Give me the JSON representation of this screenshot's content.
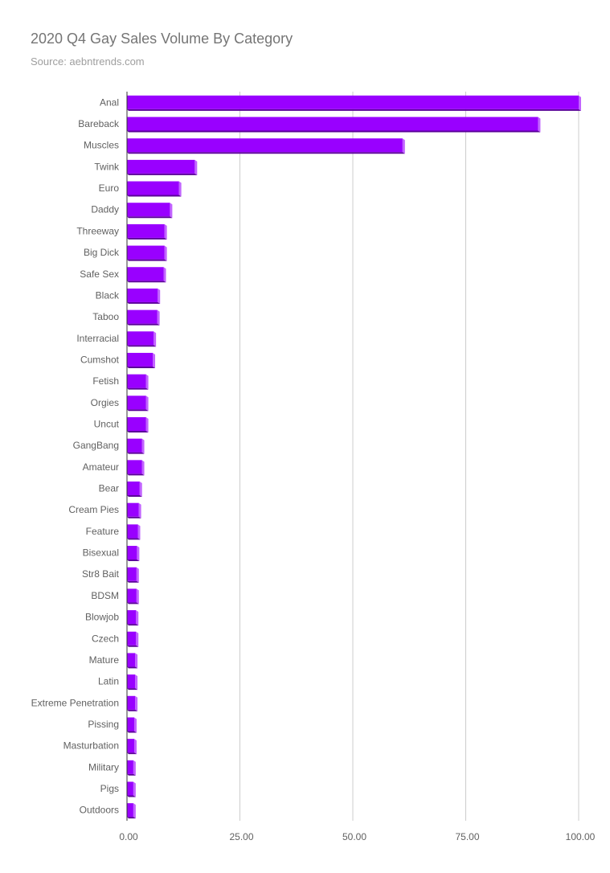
{
  "chart_data": {
    "type": "bar",
    "orientation": "horizontal",
    "title": "2020 Q4 Gay Sales Volume By Category",
    "subtitle": "Source: aebntrends.com",
    "xlabel": "",
    "ylabel": "",
    "xlim": [
      0,
      100
    ],
    "ticks": [
      "0.00",
      "25.00",
      "50.00",
      "75.00",
      "100.00"
    ],
    "tick_values": [
      0,
      25,
      50,
      75,
      100
    ],
    "grid": true,
    "legend": "none",
    "bar_color": "#9900ff",
    "categories": [
      "Anal",
      "Bareback",
      "Muscles",
      "Twink",
      "Euro",
      "Daddy",
      "Threeway",
      "Big Dick",
      "Safe Sex",
      "Black",
      "Taboo",
      "Interracial",
      "Cumshot",
      "Fetish",
      "Orgies",
      "Uncut",
      "GangBang",
      "Amateur",
      "Bear",
      "Cream Pies",
      "Feature",
      "Bisexual",
      "Str8 Bait",
      "BDSM",
      "Blowjob",
      "Czech",
      "Mature",
      "Latin",
      "Extreme Penetration",
      "Pissing",
      "Masturbation",
      "Military",
      "Pigs",
      "Outdoors"
    ],
    "values": [
      100,
      91,
      61,
      15,
      11.5,
      9.5,
      8.3,
      8.3,
      8.1,
      6.8,
      6.7,
      5.9,
      5.7,
      4.2,
      4.2,
      4.2,
      3.3,
      3.3,
      2.8,
      2.6,
      2.4,
      2.2,
      2.1,
      2.1,
      2.0,
      2.0,
      1.8,
      1.8,
      1.8,
      1.6,
      1.6,
      1.4,
      1.4,
      1.4
    ]
  }
}
